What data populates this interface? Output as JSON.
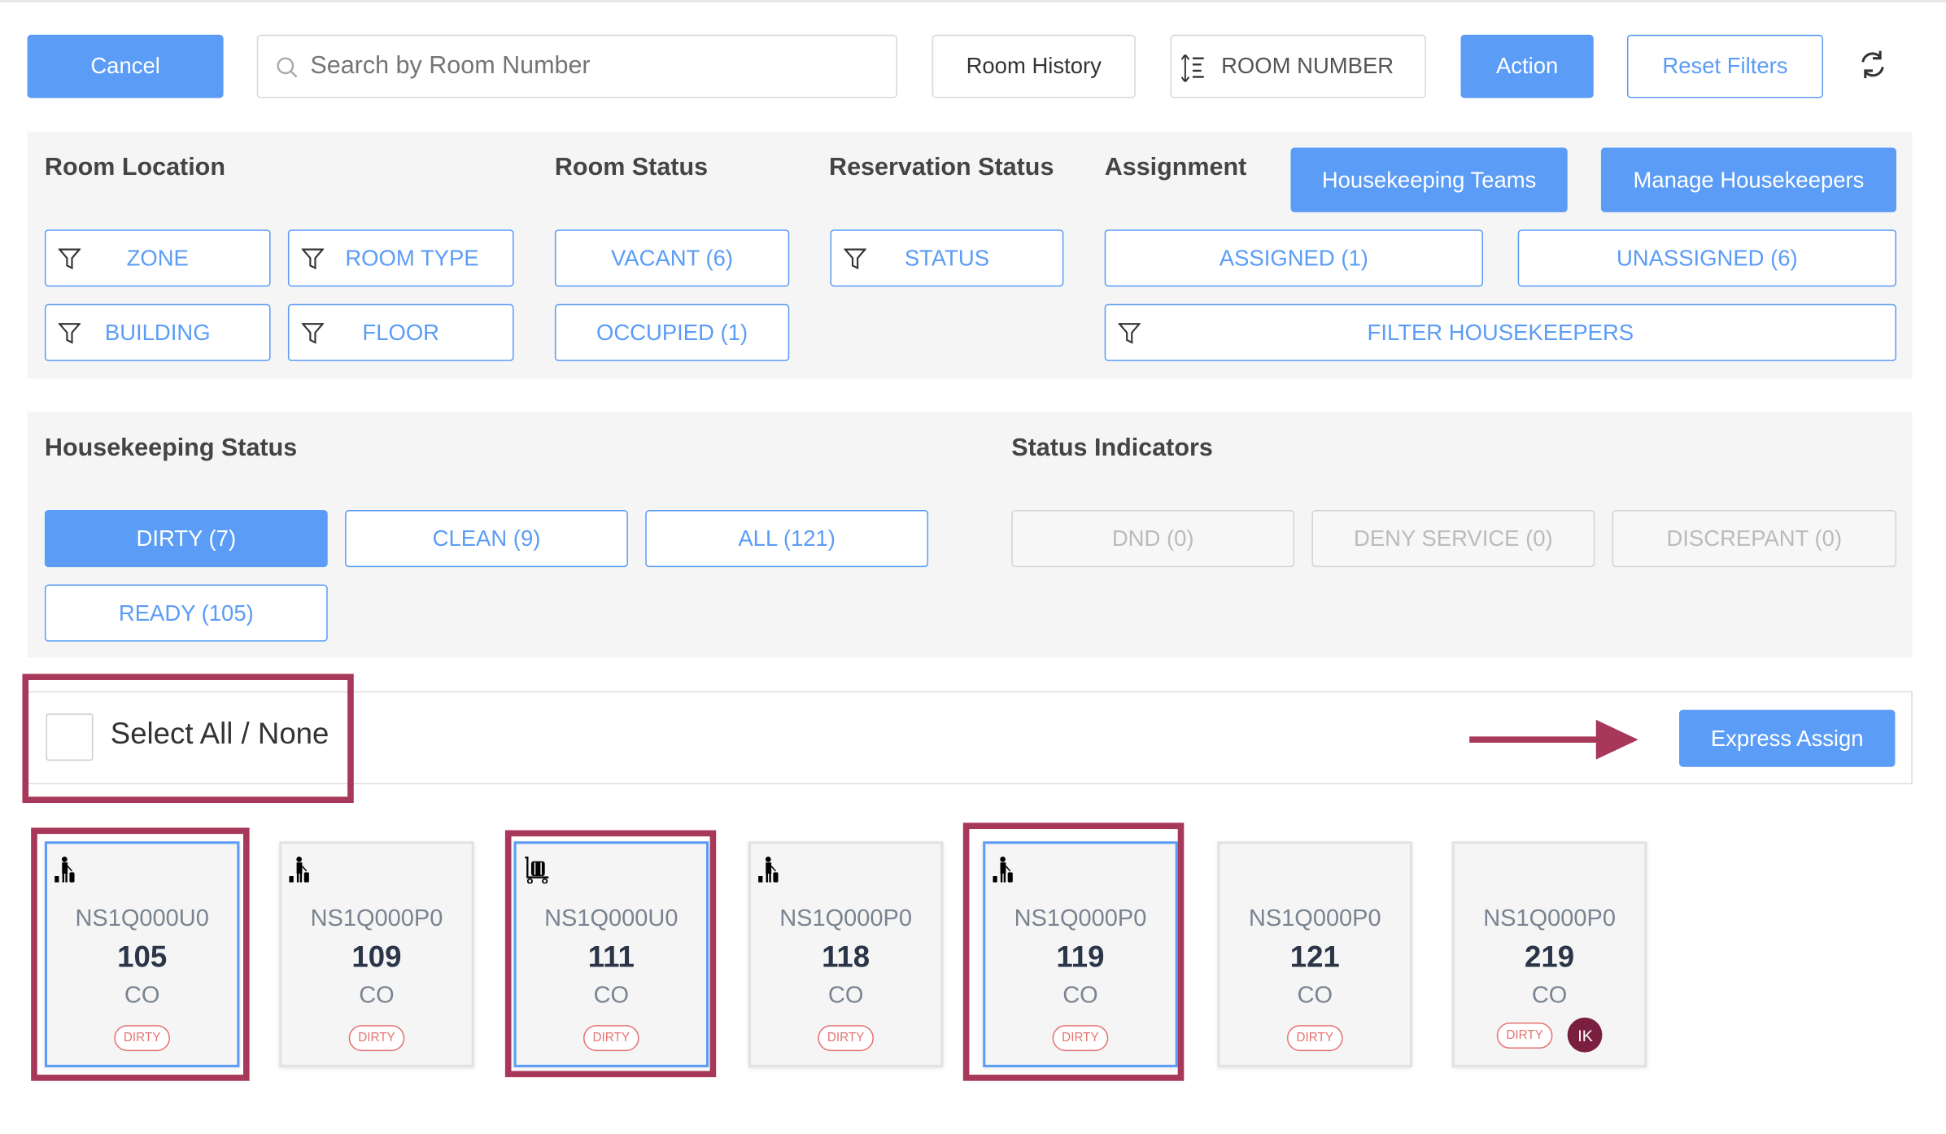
{
  "toolbar": {
    "cancel": "Cancel",
    "search_placeholder": "Search by Room Number",
    "room_history": "Room History",
    "sort_label": "ROOM NUMBER",
    "action": "Action",
    "reset_filters": "Reset Filters"
  },
  "filters": {
    "room_location": {
      "title": "Room Location",
      "zone": "ZONE",
      "room_type": "ROOM TYPE",
      "building": "BUILDING",
      "floor": "FLOOR"
    },
    "room_status": {
      "title": "Room Status",
      "vacant": "VACANT (6)",
      "occupied": "OCCUPIED (1)"
    },
    "reservation_status": {
      "title": "Reservation Status",
      "status": "STATUS"
    },
    "assignment": {
      "title": "Assignment",
      "housekeeping_teams": "Housekeeping Teams",
      "manage_housekeepers": "Manage Housekeepers",
      "assigned": "ASSIGNED (1)",
      "unassigned": "UNASSIGNED (6)",
      "filter_housekeepers": "FILTER HOUSEKEEPERS"
    }
  },
  "housekeeping": {
    "title": "Housekeeping Status",
    "dirty": "DIRTY (7)",
    "clean": "CLEAN (9)",
    "all": "ALL (121)",
    "ready": "READY (105)",
    "selected": "DIRTY (7)"
  },
  "indicators": {
    "title": "Status Indicators",
    "dnd": "DND (0)",
    "deny_service": "DENY SERVICE (0)",
    "discrepant": "DISCREPANT (0)"
  },
  "selection": {
    "select_all": "Select All / None",
    "checked": false,
    "express_assign": "Express Assign"
  },
  "colors": {
    "accent": "#5b9cf6",
    "annotation": "#a8385a",
    "dirty": "#e57373"
  },
  "rooms": [
    {
      "icon": "guest-with-luggage-icon",
      "code": "NS1Q000U0",
      "number": "105",
      "status": "CO",
      "hk": "DIRTY",
      "selected": true
    },
    {
      "icon": "guest-with-luggage-icon",
      "code": "NS1Q000P0",
      "number": "109",
      "status": "CO",
      "hk": "DIRTY",
      "selected": false
    },
    {
      "icon": "luggage-cart-icon",
      "code": "NS1Q000U0",
      "number": "111",
      "status": "CO",
      "hk": "DIRTY",
      "selected": true
    },
    {
      "icon": "guest-with-luggage-icon",
      "code": "NS1Q000P0",
      "number": "118",
      "status": "CO",
      "hk": "DIRTY",
      "selected": false
    },
    {
      "icon": "guest-with-luggage-icon",
      "code": "NS1Q000P0",
      "number": "119",
      "status": "CO",
      "hk": "DIRTY",
      "selected": true
    },
    {
      "icon": "",
      "code": "NS1Q000P0",
      "number": "121",
      "status": "CO",
      "hk": "DIRTY",
      "selected": false
    },
    {
      "icon": "",
      "code": "NS1Q000P0",
      "number": "219",
      "status": "CO",
      "hk": "DIRTY",
      "selected": false,
      "assignee": "IK"
    }
  ]
}
